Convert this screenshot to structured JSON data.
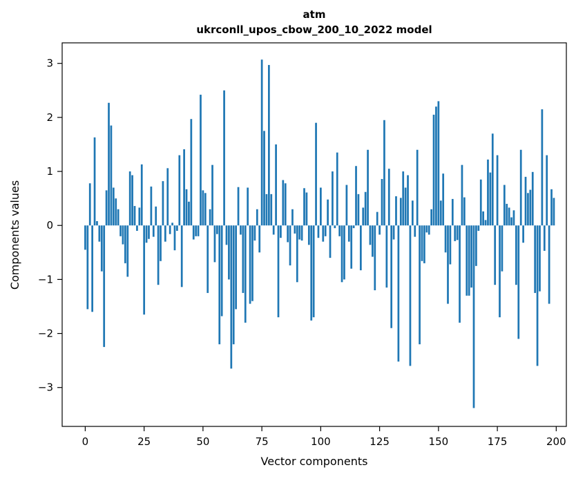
{
  "chart_data": {
    "type": "bar",
    "title": "atm",
    "subtitle": "ukrconll_upos_cbow_200_10_2022 model",
    "xlabel": "Vector components",
    "ylabel": "Components values",
    "bar_color": "#1f77b4",
    "background_color": "#ffffff",
    "axis_color": "#000000",
    "grid": false,
    "legend": null,
    "x_ticks": [
      0,
      25,
      50,
      75,
      100,
      125,
      150,
      175,
      200
    ],
    "y_ticks": [
      -3,
      -2,
      -1,
      0,
      1,
      2,
      3
    ],
    "xlim": [
      -9.8,
      204.3
    ],
    "ylim": [
      -3.72,
      3.38
    ],
    "n_components": 200,
    "values": [
      -0.45,
      -1.55,
      0.78,
      -1.6,
      1.63,
      0.08,
      -0.3,
      -0.85,
      -2.25,
      0.65,
      2.27,
      1.85,
      0.7,
      0.5,
      0.3,
      -0.2,
      -0.35,
      -0.7,
      -0.95,
      1.0,
      0.93,
      0.36,
      -0.1,
      0.33,
      1.13,
      -1.65,
      -0.32,
      -0.25,
      0.72,
      -0.21,
      0.35,
      -1.1,
      -0.66,
      0.82,
      -0.3,
      1.06,
      -0.16,
      0.05,
      -0.46,
      -0.1,
      1.3,
      -1.14,
      1.41,
      0.67,
      0.44,
      1.97,
      -0.26,
      -0.2,
      -0.2,
      2.42,
      0.65,
      0.6,
      -1.25,
      0.3,
      1.12,
      -0.68,
      -0.16,
      -2.2,
      -1.68,
      2.5,
      -0.36,
      -1.0,
      -2.65,
      -2.2,
      -1.55,
      0.71,
      -0.17,
      -1.25,
      -1.8,
      0.7,
      -1.45,
      -1.4,
      -0.28,
      0.3,
      -0.5,
      3.07,
      1.75,
      0.58,
      2.97,
      0.58,
      -0.17,
      1.5,
      -1.7,
      -0.23,
      0.84,
      0.78,
      -0.31,
      -0.74,
      0.3,
      -0.15,
      -1.05,
      -0.26,
      -0.28,
      0.69,
      0.61,
      -0.36,
      -1.76,
      -1.7,
      1.9,
      -0.23,
      0.7,
      -0.3,
      -0.2,
      0.48,
      -0.6,
      1.0,
      -0.05,
      1.35,
      -0.2,
      -1.05,
      -1.0,
      0.75,
      -0.3,
      -0.8,
      -0.05,
      1.1,
      0.58,
      -0.83,
      0.33,
      0.62,
      1.4,
      -0.36,
      -0.58,
      -1.2,
      0.25,
      -0.17,
      0.86,
      1.95,
      -1.15,
      1.05,
      -1.9,
      -0.26,
      0.54,
      -2.52,
      0.51,
      1.0,
      0.7,
      0.93,
      -2.6,
      0.46,
      -0.21,
      1.4,
      -2.2,
      -0.66,
      -0.7,
      -0.13,
      -0.17,
      0.3,
      2.05,
      2.2,
      2.3,
      0.46,
      0.96,
      -0.5,
      -1.45,
      -0.72,
      0.49,
      -0.29,
      -0.27,
      -1.8,
      1.12,
      0.52,
      -1.3,
      -1.3,
      -1.15,
      -3.38,
      -0.75,
      -0.1,
      0.85,
      0.26,
      0.1,
      1.22,
      0.98,
      1.7,
      -1.1,
      1.3,
      -1.7,
      -0.85,
      0.75,
      0.4,
      0.33,
      0.15,
      0.28,
      -1.1,
      -2.1,
      1.4,
      -0.32,
      0.9,
      0.6,
      0.66,
      0.99,
      -1.25,
      -2.6,
      -1.22,
      2.15,
      -0.47,
      1.3,
      -1.45,
      0.67,
      0.51
    ]
  }
}
